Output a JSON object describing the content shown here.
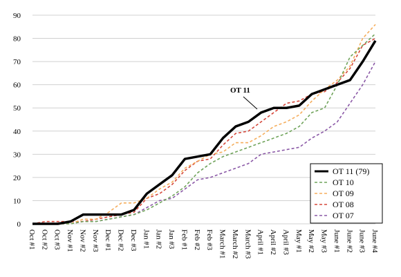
{
  "chart_data": {
    "type": "line",
    "categories": [
      "Oct #1",
      "Oct #2",
      "Oct #3",
      "Nov #1",
      "Nov #2",
      "Nov #3",
      "Dec #1",
      "Dec #2",
      "Dec #3",
      "Jan #1",
      "Jan #2",
      "Jan #3",
      "Feb #1",
      "Feb #2",
      "Feb #3",
      "March #1",
      "March #2",
      "March #3",
      "April #1",
      "April #2",
      "April #3",
      "May #1",
      "May #2",
      "May #3",
      "June #1",
      "June #2",
      "June #3",
      "June #4"
    ],
    "series": [
      {
        "name": "OT 11 (79)",
        "color": "#000000",
        "dashed": false,
        "values": [
          0,
          0,
          0,
          1,
          4,
          4,
          4,
          4,
          6,
          13,
          17,
          21,
          28,
          29,
          30,
          37,
          42,
          44,
          48,
          50,
          50,
          51,
          56,
          58,
          60,
          62,
          70,
          79
        ]
      },
      {
        "name": "OT 10",
        "color": "#6fa35a",
        "dashed": true,
        "values": [
          0,
          0,
          0,
          0,
          1,
          1,
          2,
          3,
          4,
          6,
          9,
          12,
          16,
          22,
          26,
          29,
          31,
          33,
          35,
          37,
          39,
          42,
          48,
          50,
          60,
          72,
          77,
          82
        ]
      },
      {
        "name": "OT 09",
        "color": "#f5ad5c",
        "dashed": true,
        "values": [
          0,
          0,
          0,
          0,
          2,
          2,
          5,
          9,
          9,
          11,
          15,
          18,
          24,
          27,
          30,
          31,
          35,
          35,
          38,
          42,
          44,
          47,
          53,
          58,
          62,
          68,
          80,
          86
        ]
      },
      {
        "name": "OT 08",
        "color": "#d5473a",
        "dashed": true,
        "values": [
          0,
          1,
          1,
          1,
          1,
          2,
          3,
          4,
          5,
          11,
          13,
          17,
          23,
          27,
          28,
          34,
          39,
          40,
          44,
          48,
          52,
          53,
          56,
          57,
          61,
          67,
          77,
          80
        ]
      },
      {
        "name": "OT 07",
        "color": "#8a58a6",
        "dashed": true,
        "values": [
          0,
          0,
          0,
          0,
          1,
          1,
          2,
          3,
          4,
          7,
          10,
          11,
          15,
          19,
          20,
          22,
          24,
          26,
          30,
          31,
          32,
          33,
          37,
          40,
          44,
          52,
          60,
          70
        ]
      }
    ],
    "annotation": "OT 11",
    "ylim": [
      0,
      90
    ],
    "yticks": [
      0,
      10,
      20,
      30,
      40,
      50,
      60,
      70,
      80,
      90
    ],
    "grid": true,
    "legend": "lower right"
  }
}
